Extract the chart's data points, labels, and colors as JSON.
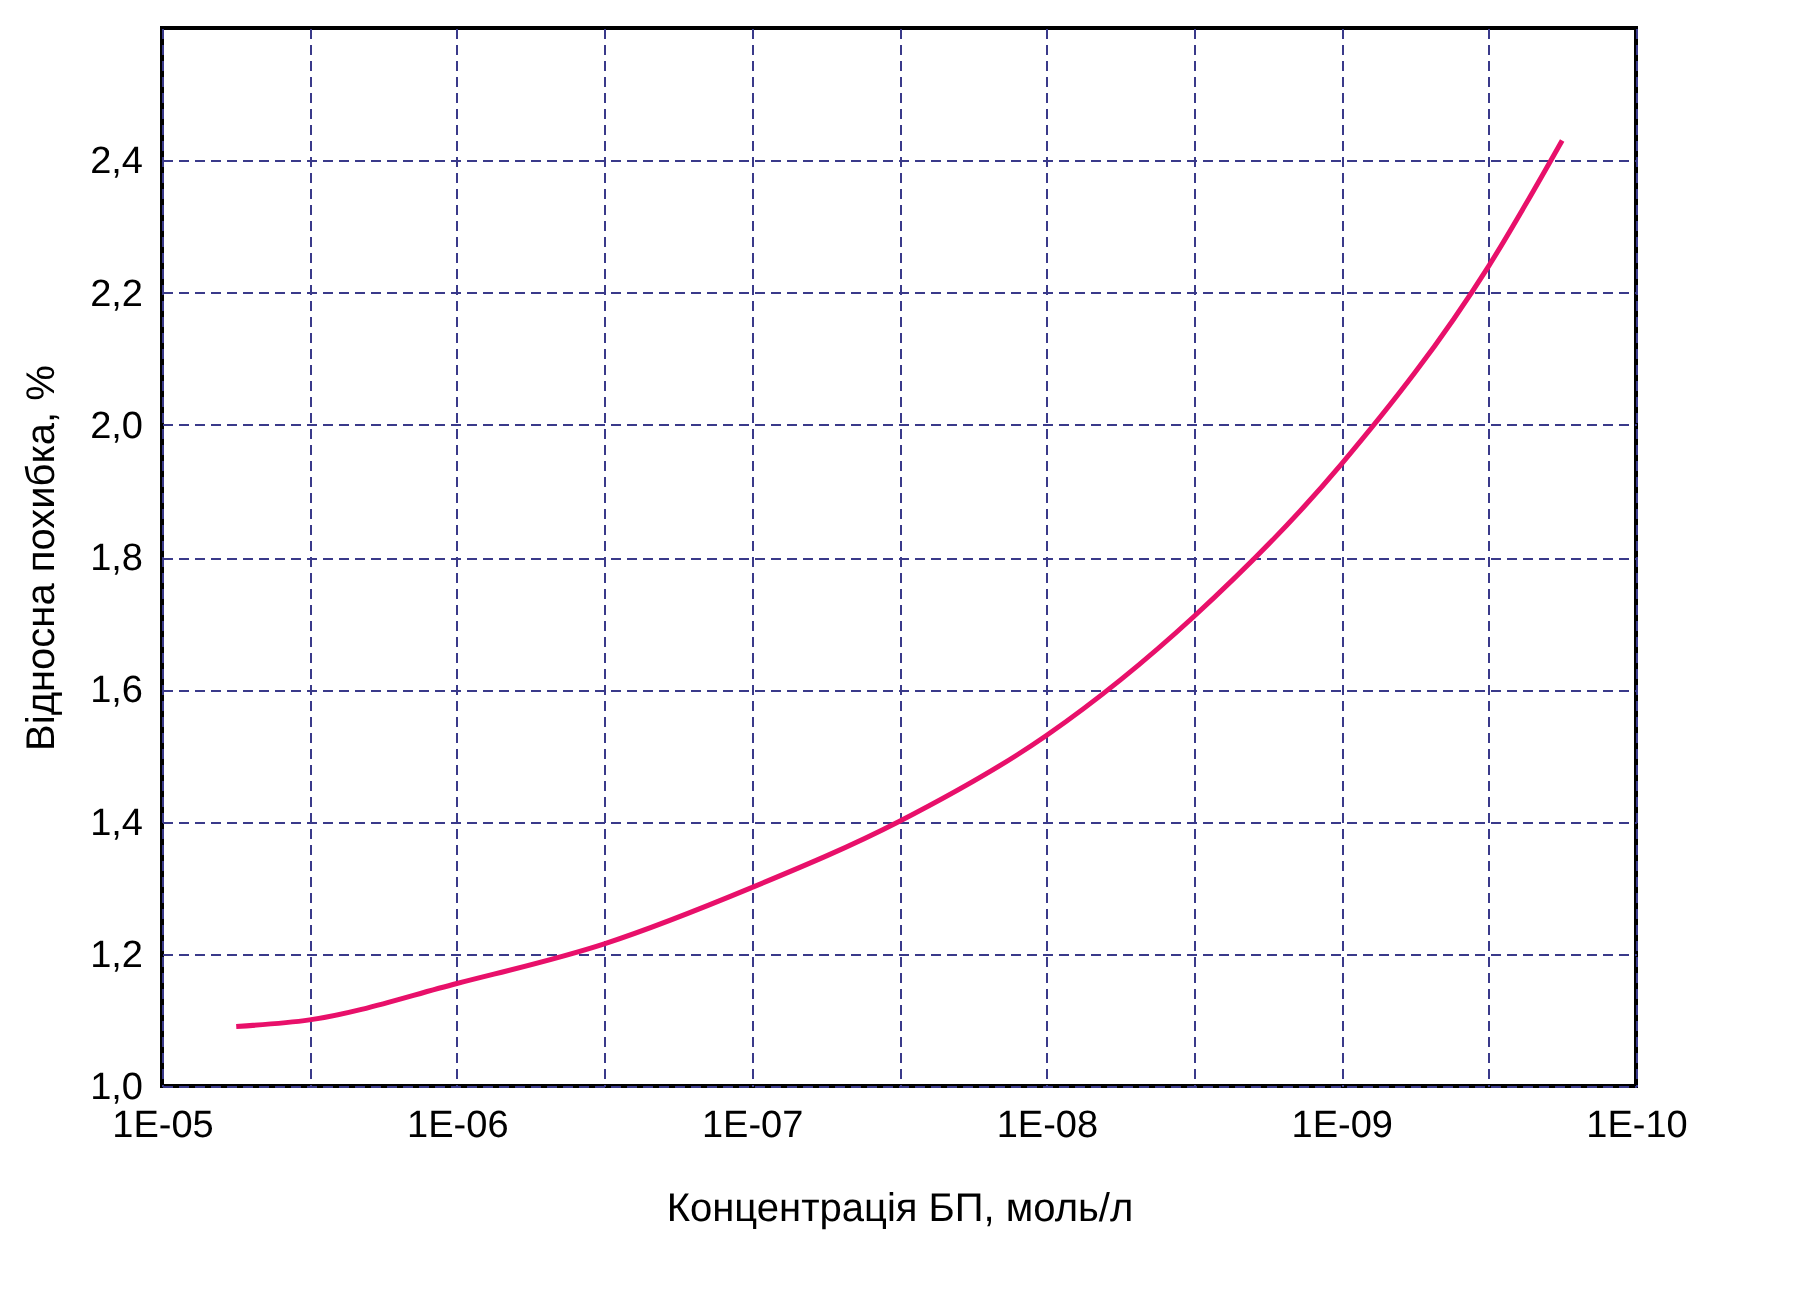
{
  "chart_data": {
    "type": "line",
    "xlabel": "Концентрація БП, моль/л",
    "ylabel": "Відносна похибка, %",
    "log": "x",
    "grid": true,
    "marker": "none",
    "line_style": "solid",
    "xlim": [
      1e-05,
      1e-10
    ],
    "xticks": [
      {
        "value": 1e-05,
        "label": "1E-05"
      },
      {
        "value": 3.162e-06,
        "label": null
      },
      {
        "value": 1e-06,
        "label": "1E-06"
      },
      {
        "value": 3.162e-07,
        "label": null
      },
      {
        "value": 1e-07,
        "label": "1E-07"
      },
      {
        "value": 3.162e-08,
        "label": null
      },
      {
        "value": 1e-08,
        "label": "1E-08"
      },
      {
        "value": 3.162e-09,
        "label": null
      },
      {
        "value": 1e-09,
        "label": "1E-09"
      },
      {
        "value": 3.162e-10,
        "label": null
      },
      {
        "value": 1e-10,
        "label": "1E-10"
      }
    ],
    "ylim": [
      1.0,
      2.6
    ],
    "yticks": [
      {
        "value": 1.0,
        "label": "1,0"
      },
      {
        "value": 1.2,
        "label": "1,2"
      },
      {
        "value": 1.4,
        "label": "1,4"
      },
      {
        "value": 1.6,
        "label": "1,6"
      },
      {
        "value": 1.8,
        "label": "1,8"
      },
      {
        "value": 2.0,
        "label": "2,0"
      },
      {
        "value": 2.2,
        "label": "2,2"
      },
      {
        "value": 2.4,
        "label": "2,4"
      }
    ],
    "x": [
      5.6e-06,
      3.16e-06,
      1e-06,
      3.16e-07,
      1e-07,
      3.16e-08,
      1e-08,
      3.16e-09,
      1e-09,
      3.16e-10,
      1.78e-10
    ],
    "series": [
      {
        "color": "#e8106a",
        "values": [
          1.09,
          1.1,
          1.155,
          1.215,
          1.3,
          1.4,
          1.53,
          1.71,
          1.94,
          2.24,
          2.43
        ]
      }
    ]
  }
}
